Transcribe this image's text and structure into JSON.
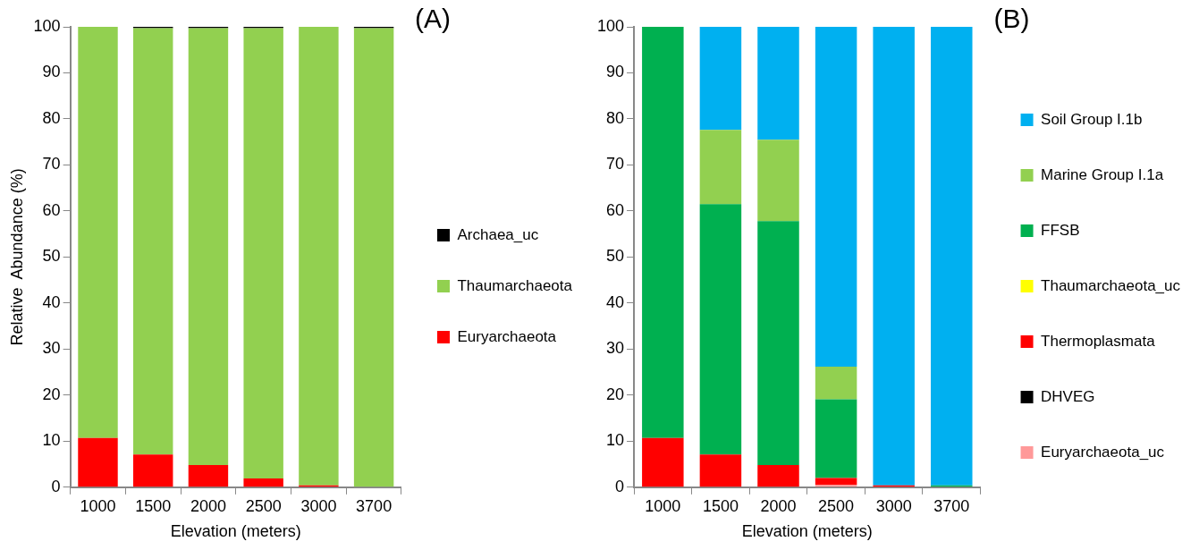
{
  "chart_data": [
    {
      "type": "bar",
      "title": "(A)",
      "xlabel": "Elevation (meters)",
      "ylabel": "Relative  Abundance (%)",
      "stacked": true,
      "legend": "right",
      "grid": false,
      "categories": [
        "1000",
        "1500",
        "2000",
        "2500",
        "3000",
        "3700"
      ],
      "ylim": [
        0,
        100
      ],
      "yticks": [
        0,
        10,
        20,
        30,
        40,
        50,
        60,
        70,
        80,
        90,
        100
      ],
      "series": [
        {
          "name": "Euryarchaeota",
          "color": "#ff0000",
          "values": [
            10.7,
            7.1,
            4.8,
            1.9,
            0.4,
            0
          ]
        },
        {
          "name": "Thaumarchaeota",
          "color": "#92d050",
          "values": [
            89.3,
            92.6,
            94.9,
            97.8,
            99.6,
            99.7
          ]
        },
        {
          "name": "Archaea_uc",
          "color": "#000000",
          "values": [
            0,
            0.3,
            0.3,
            0.3,
            0,
            0.3
          ]
        }
      ]
    },
    {
      "type": "bar",
      "title": "(B)",
      "xlabel": "Elevation (meters)",
      "stacked": true,
      "legend": "right",
      "grid": false,
      "categories": [
        "1000",
        "1500",
        "2000",
        "2500",
        "3000",
        "3700"
      ],
      "ylim": [
        0,
        100
      ],
      "yticks": [
        0,
        10,
        20,
        30,
        40,
        50,
        60,
        70,
        80,
        90,
        100
      ],
      "series": [
        {
          "name": "Euryarchaeota_uc",
          "color": "#ff9999",
          "values": [
            0,
            0,
            0,
            0.5,
            0,
            0
          ]
        },
        {
          "name": "DHVEG",
          "color": "#000000",
          "values": [
            0,
            0,
            0,
            0,
            0,
            0
          ]
        },
        {
          "name": "Thermoplasmata",
          "color": "#ff0000",
          "values": [
            10.7,
            7.1,
            4.8,
            1.5,
            0.4,
            0
          ]
        },
        {
          "name": "Thaumarchaeota_uc",
          "color": "#ffff00",
          "values": [
            0,
            0,
            0,
            0,
            0,
            0
          ]
        },
        {
          "name": "FFSB",
          "color": "#00b050",
          "values": [
            89.3,
            54.4,
            53.0,
            17.1,
            0,
            0.4
          ]
        },
        {
          "name": "Marine Group I.1a",
          "color": "#92d050",
          "values": [
            0,
            16.1,
            17.7,
            7.1,
            0,
            0
          ]
        },
        {
          "name": "Soil Group I.1b",
          "color": "#00b0f0",
          "values": [
            0,
            22.4,
            24.5,
            73.8,
            99.6,
            99.6
          ]
        }
      ]
    }
  ]
}
